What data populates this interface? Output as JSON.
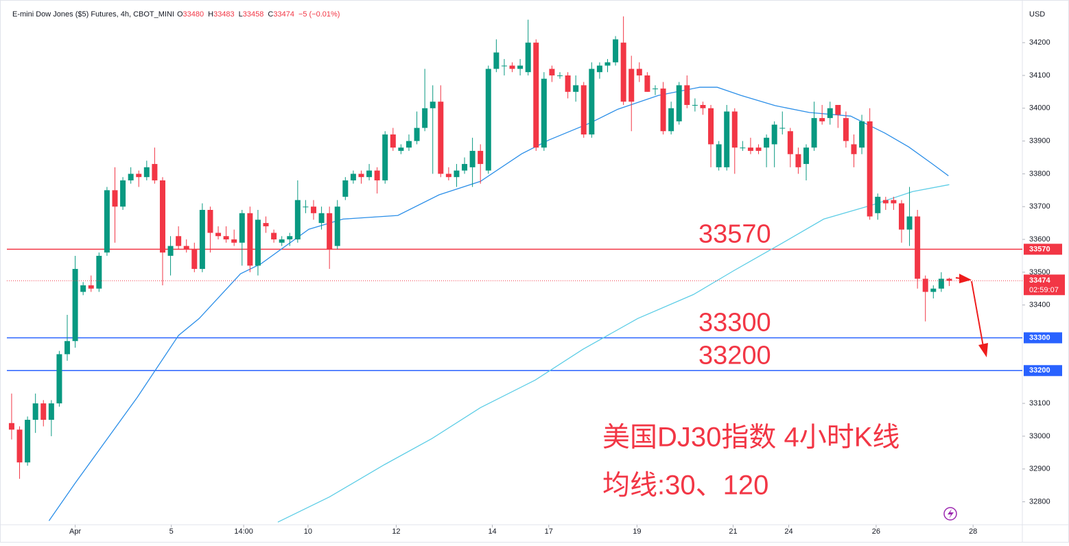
{
  "header": {
    "title": "E-mini Dow Jones ($5) Futures, 4h, CBOT_MINI",
    "ohlc": [
      {
        "key": "O",
        "value": 33480
      },
      {
        "key": "H",
        "value": 33483
      },
      {
        "key": "L",
        "value": 33458
      },
      {
        "key": "C",
        "value": 33474
      }
    ],
    "change": "−5 (−0.01%)"
  },
  "chart_data": {
    "type": "candlestick",
    "currency": "USD",
    "up_color": "#089981",
    "down_color": "#f23645",
    "xlim": [
      -0.6,
      127.2
    ],
    "ylim": [
      32730,
      34330
    ],
    "yticks": [
      32800,
      32900,
      33000,
      33100,
      33400,
      33500,
      33600,
      33700,
      33800,
      33900,
      34000,
      34100,
      34200
    ],
    "xticks": [
      {
        "value": 8,
        "label": "Apr"
      },
      {
        "value": 20.1,
        "label": "5"
      },
      {
        "value": 29.2,
        "label": "14:00"
      },
      {
        "value": 37.3,
        "label": "10"
      },
      {
        "value": 48.4,
        "label": "12"
      },
      {
        "value": 60.5,
        "label": "14"
      },
      {
        "value": 67.6,
        "label": "17"
      },
      {
        "value": 78.7,
        "label": "19"
      },
      {
        "value": 90.8,
        "label": "21"
      },
      {
        "value": 97.8,
        "label": "24"
      },
      {
        "value": 108.8,
        "label": "26"
      },
      {
        "value": 121,
        "label": "28"
      }
    ],
    "candles": [
      [
        33040,
        33130,
        32990,
        33020
      ],
      [
        33020,
        33030,
        32870,
        32920
      ],
      [
        32920,
        33060,
        32910,
        33050
      ],
      [
        33050,
        33130,
        33010,
        33100
      ],
      [
        33100,
        33110,
        33030,
        33050
      ],
      [
        33050,
        33110,
        33000,
        33100
      ],
      [
        33100,
        33260,
        33090,
        33250
      ],
      [
        33250,
        33370,
        33230,
        33290
      ],
      [
        33290,
        33550,
        33270,
        33510
      ],
      [
        33440,
        33470,
        33430,
        33460
      ],
      [
        33460,
        33490,
        33440,
        33450
      ],
      [
        33450,
        33560,
        33440,
        33550
      ],
      [
        33560,
        33760,
        33550,
        33750
      ],
      [
        33750,
        33820,
        33590,
        33700
      ],
      [
        33700,
        33790,
        33690,
        33780
      ],
      [
        33780,
        33820,
        33770,
        33800
      ],
      [
        33800,
        33810,
        33760,
        33790
      ],
      [
        33790,
        33840,
        33780,
        33820
      ],
      [
        33830,
        33880,
        33770,
        33780
      ],
      [
        33780,
        33790,
        33460,
        33560
      ],
      [
        33550,
        33610,
        33490,
        33580
      ],
      [
        33610,
        33640,
        33570,
        33580
      ],
      [
        33580,
        33600,
        33560,
        33570
      ],
      [
        33570,
        33590,
        33500,
        33510
      ],
      [
        33510,
        33710,
        33500,
        33690
      ],
      [
        33690,
        33700,
        33560,
        33620
      ],
      [
        33620,
        33640,
        33600,
        33610
      ],
      [
        33610,
        33640,
        33590,
        33600
      ],
      [
        33600,
        33630,
        33580,
        33590
      ],
      [
        33590,
        33690,
        33520,
        33680
      ],
      [
        33680,
        33700,
        33500,
        33520
      ],
      [
        33520,
        33690,
        33490,
        33660
      ],
      [
        33650,
        33670,
        33620,
        33640
      ],
      [
        33620,
        33630,
        33590,
        33600
      ],
      [
        33590,
        33610,
        33580,
        33600
      ],
      [
        33600,
        33620,
        33580,
        33610
      ],
      [
        33600,
        33780,
        33590,
        33720
      ],
      [
        33700,
        33720,
        33680,
        33700
      ],
      [
        33700,
        33720,
        33660,
        33680
      ],
      [
        33650,
        33700,
        33630,
        33680
      ],
      [
        33680,
        33700,
        33510,
        33570
      ],
      [
        33580,
        33720,
        33570,
        33700
      ],
      [
        33730,
        33790,
        33720,
        33780
      ],
      [
        33780,
        33810,
        33770,
        33800
      ],
      [
        33800,
        33810,
        33770,
        33790
      ],
      [
        33790,
        33830,
        33780,
        33810
      ],
      [
        33810,
        33820,
        33740,
        33780
      ],
      [
        33780,
        33930,
        33770,
        33920
      ],
      [
        33920,
        33940,
        33870,
        33880
      ],
      [
        33870,
        33890,
        33860,
        33880
      ],
      [
        33880,
        33920,
        33870,
        33900
      ],
      [
        33900,
        33990,
        33890,
        33940
      ],
      [
        33940,
        34120,
        33930,
        34000
      ],
      [
        34000,
        34070,
        33800,
        34020
      ],
      [
        34020,
        34070,
        33790,
        33800
      ],
      [
        33800,
        33820,
        33780,
        33790
      ],
      [
        33790,
        33830,
        33760,
        33810
      ],
      [
        33810,
        33850,
        33800,
        33830
      ],
      [
        33820,
        33910,
        33760,
        33870
      ],
      [
        33870,
        33890,
        33770,
        33830
      ],
      [
        33810,
        34130,
        33800,
        34120
      ],
      [
        34120,
        34210,
        34110,
        34170
      ],
      [
        34130,
        34150,
        34100,
        34130
      ],
      [
        34130,
        34140,
        34110,
        34120
      ],
      [
        34120,
        34150,
        34100,
        34130
      ],
      [
        34110,
        34270,
        34100,
        34200
      ],
      [
        34200,
        34210,
        33870,
        33880
      ],
      [
        33880,
        34110,
        33870,
        34090
      ],
      [
        34120,
        34130,
        34080,
        34100
      ],
      [
        34100,
        34110,
        34090,
        34100
      ],
      [
        34100,
        34110,
        34030,
        34050
      ],
      [
        34050,
        34100,
        34020,
        34070
      ],
      [
        34070,
        34080,
        33910,
        33920
      ],
      [
        33920,
        34140,
        33910,
        34120
      ],
      [
        34110,
        34140,
        34090,
        34130
      ],
      [
        34130,
        34150,
        34110,
        34140
      ],
      [
        34140,
        34220,
        34130,
        34210
      ],
      [
        34200,
        34280,
        34010,
        34020
      ],
      [
        34120,
        34160,
        33930,
        34020
      ],
      [
        34120,
        34140,
        34080,
        34100
      ],
      [
        34100,
        34110,
        34050,
        34050
      ],
      [
        34060,
        34070,
        34040,
        34060
      ],
      [
        34060,
        34080,
        33920,
        33930
      ],
      [
        33930,
        34020,
        33920,
        34000
      ],
      [
        33960,
        34080,
        33950,
        34070
      ],
      [
        34070,
        34100,
        34000,
        34010
      ],
      [
        34010,
        34030,
        33990,
        34010
      ],
      [
        34010,
        34020,
        33980,
        34000
      ],
      [
        34000,
        34010,
        33820,
        33890
      ],
      [
        33820,
        33900,
        33810,
        33890
      ],
      [
        33820,
        34010,
        33810,
        33990
      ],
      [
        33990,
        34000,
        33800,
        33880
      ],
      [
        33880,
        33900,
        33870,
        33880
      ],
      [
        33880,
        33910,
        33860,
        33870
      ],
      [
        33880,
        33890,
        33860,
        33870
      ],
      [
        33880,
        33920,
        33820,
        33910
      ],
      [
        33890,
        33960,
        33820,
        33950
      ],
      [
        33940,
        33990,
        33920,
        33940
      ],
      [
        33930,
        33940,
        33820,
        33860
      ],
      [
        33860,
        33880,
        33800,
        33820
      ],
      [
        33830,
        33890,
        33780,
        33880
      ],
      [
        33880,
        34020,
        33870,
        33970
      ],
      [
        33970,
        34010,
        33950,
        33960
      ],
      [
        33970,
        34020,
        33950,
        34000
      ],
      [
        34010,
        34010,
        33940,
        33980
      ],
      [
        33970,
        33990,
        33880,
        33900
      ],
      [
        33890,
        33920,
        33820,
        33860
      ],
      [
        33880,
        33980,
        33860,
        33960
      ],
      [
        33960,
        34000,
        33660,
        33670
      ],
      [
        33680,
        33740,
        33660,
        33730
      ],
      [
        33720,
        33730,
        33690,
        33710
      ],
      [
        33720,
        33730,
        33690,
        33710
      ],
      [
        33710,
        33720,
        33590,
        33630
      ],
      [
        33630,
        33760,
        33580,
        33670
      ],
      [
        33670,
        33690,
        33450,
        33480
      ],
      [
        33480,
        33490,
        33350,
        33440
      ],
      [
        33440,
        33460,
        33420,
        33450
      ],
      [
        33450,
        33500,
        33440,
        33480
      ],
      [
        33480,
        33483,
        33458,
        33474
      ]
    ],
    "series": [
      {
        "name": "MA30",
        "color": "#2a8ee8",
        "x": [
          4.7,
          8,
          15.8,
          21,
          23.6,
          28.8,
          31.4,
          37.4,
          41.7,
          48.6,
          53.8,
          59,
          64.2,
          67.6,
          72.8,
          76.3,
          81.4,
          86.6,
          88.8,
          91.8,
          96.1,
          100.4,
          105.6,
          109.9,
          112.9,
          115.9,
          117.9
        ],
        "values": [
          32742,
          32857,
          33118,
          33307,
          33359,
          33495,
          33526,
          33631,
          33662,
          33673,
          33736,
          33777,
          33861,
          33903,
          33955,
          33997,
          34039,
          34064,
          34064,
          34039,
          34008,
          33987,
          33976,
          33924,
          33882,
          33830,
          33794
        ]
      },
      {
        "name": "MA120",
        "color": "#5ccde6",
        "x": [
          33.5,
          40,
          46.9,
          52.9,
          59,
          65.9,
          71.9,
          78.8,
          85.8,
          90.9,
          97,
          102.2,
          108.2,
          113.4,
          118
        ],
        "values": [
          32738,
          32815,
          32913,
          32993,
          33087,
          33171,
          33265,
          33359,
          33432,
          33505,
          33589,
          33662,
          33704,
          33746,
          33767
        ]
      }
    ],
    "levels": [
      {
        "value": 33570,
        "color": "#f23645"
      },
      {
        "value": 33300,
        "color": "#2962ff"
      },
      {
        "value": 33200,
        "color": "#2962ff"
      }
    ],
    "current_price": {
      "value": 33474,
      "countdown": "02:59:07"
    },
    "annotations": [
      "美国DJ30指数 4小时K线",
      "均线:30、120"
    ]
  }
}
